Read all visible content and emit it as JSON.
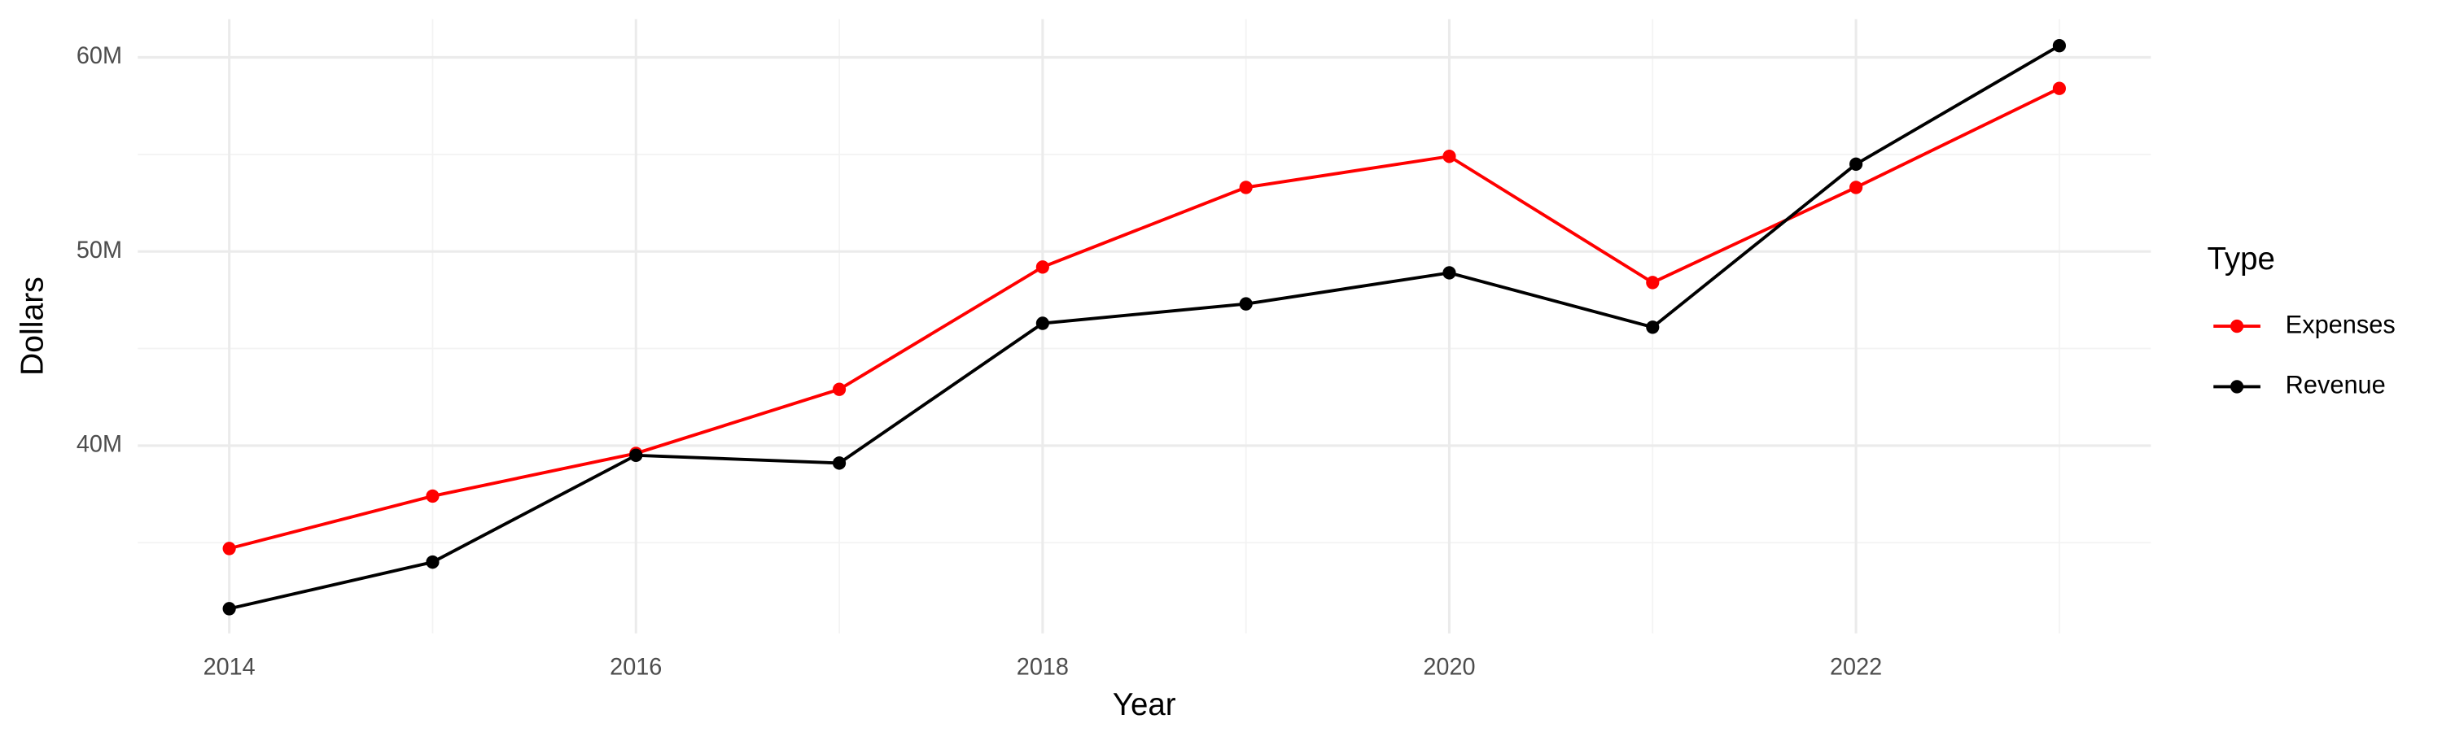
{
  "chart_data": {
    "type": "line",
    "x_label": "Year",
    "y_label": "Dollars",
    "legend_title": "Type",
    "legend_position": "right",
    "grid": true,
    "x": [
      2014,
      2015,
      2016,
      2017,
      2018,
      2019,
      2020,
      2021,
      2022,
      2023
    ],
    "series": [
      {
        "name": "Expenses",
        "color": "#ff0000",
        "values": [
          34700000,
          37400000,
          39600000,
          42900000,
          49200000,
          53300000,
          54900000,
          48400000,
          53300000,
          58400000
        ]
      },
      {
        "name": "Revenue",
        "color": "#000000",
        "values": [
          31600000,
          34000000,
          39500000,
          39100000,
          46300000,
          47300000,
          48900000,
          46100000,
          54500000,
          60600000
        ]
      }
    ],
    "xlim": [
      2013.55,
      2023.45
    ],
    "xticks": [
      2014,
      2016,
      2018,
      2020,
      2022
    ],
    "minor_xgrid": [
      2015,
      2017,
      2019,
      2021,
      2023
    ],
    "ylim": [
      30330000,
      61970000
    ],
    "yticks": [
      {
        "value": 40000000,
        "label": "40M"
      },
      {
        "value": 50000000,
        "label": "50M"
      },
      {
        "value": 60000000,
        "label": "60M"
      }
    ],
    "minor_ygrid": [
      35000000,
      45000000,
      55000000
    ]
  }
}
